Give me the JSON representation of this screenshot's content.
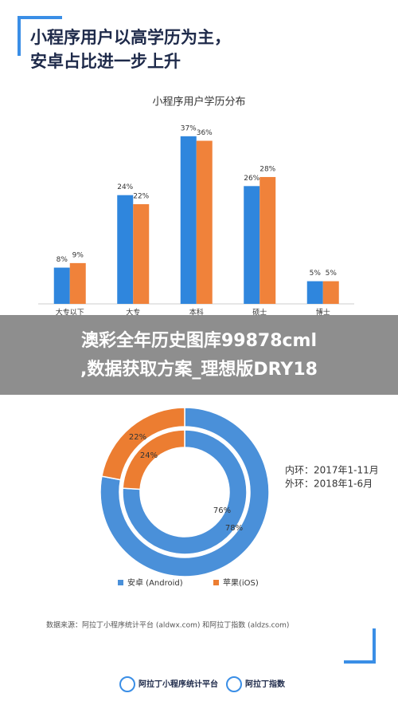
{
  "header": {
    "title_lines": [
      "小程序用户以高学历为主，",
      "安卓占比进一步上升"
    ]
  },
  "chart_data": [
    {
      "type": "bar",
      "title": "小程序用户学历分布",
      "categories": [
        "大专以下",
        "大专",
        "本科",
        "硕士",
        "博士"
      ],
      "series": [
        {
          "color": "#2f86dd",
          "values": [
            8,
            24,
            37,
            26,
            5
          ],
          "value_labels": [
            "8%",
            "24%",
            "37%",
            "26%",
            "5%"
          ]
        },
        {
          "color": "#f0823a",
          "values": [
            9,
            22,
            36,
            28,
            5
          ],
          "value_labels": [
            "9%",
            "22%",
            "36%",
            "28%",
            "5%"
          ]
        }
      ]
    },
    {
      "type": "donut",
      "categories": [
        "安卓 (Android)",
        "苹果(iOS)"
      ],
      "colors": [
        "#4a90d9",
        "#ec7d31"
      ],
      "rings": [
        {
          "values": [
            76,
            24
          ],
          "value_labels": [
            "76%",
            "24%"
          ]
        },
        {
          "values": [
            78,
            22
          ],
          "value_labels": [
            "78%",
            "22%"
          ]
        }
      ],
      "annotations": [
        "内环：2017年1-11月",
        "外环：2018年1-6月"
      ]
    }
  ],
  "overlay": {
    "lines": [
      "澳彩全年历史图库99878cml",
      ",数据获取方案_理想版DRY18"
    ]
  },
  "footer": {
    "source": "数据来源：阿拉丁小程序统计平台 (aldwx.com) 和阿拉丁指数 (aldzs.com)",
    "logos": [
      "阿拉丁小程序统计平台",
      "阿拉丁指数"
    ]
  }
}
